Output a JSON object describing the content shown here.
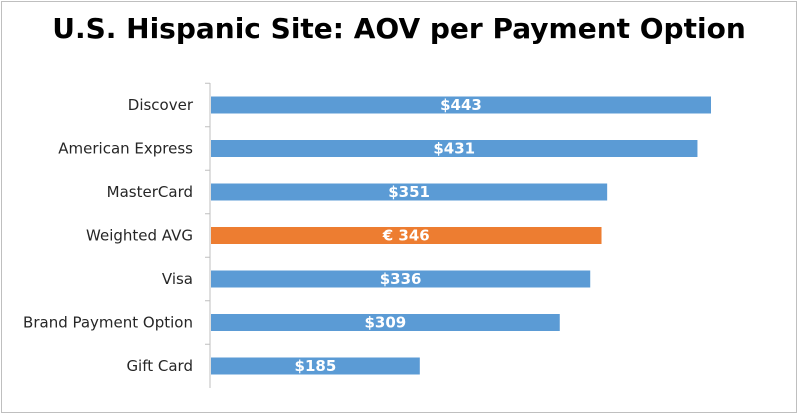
{
  "chart_data": {
    "type": "bar",
    "orientation": "horizontal",
    "title": "U.S. Hispanic Site: AOV per Payment Option",
    "categories": [
      "Discover",
      "American Express",
      "MasterCard",
      "Weighted AVG",
      "Visa",
      "Brand Payment Option",
      "Gift Card"
    ],
    "values": [
      443,
      431,
      351,
      346,
      336,
      309,
      185
    ],
    "value_labels": [
      "$443",
      "$431",
      "$351",
      "€ 346",
      "$336",
      "$309",
      "$185"
    ],
    "highlight_index": 3,
    "colors": {
      "bar": "#5b9bd5",
      "highlight": "#ed7d31",
      "axis": "#bfbfbf"
    },
    "xlim": [
      0,
      443
    ],
    "grid": false,
    "legend": "none"
  }
}
